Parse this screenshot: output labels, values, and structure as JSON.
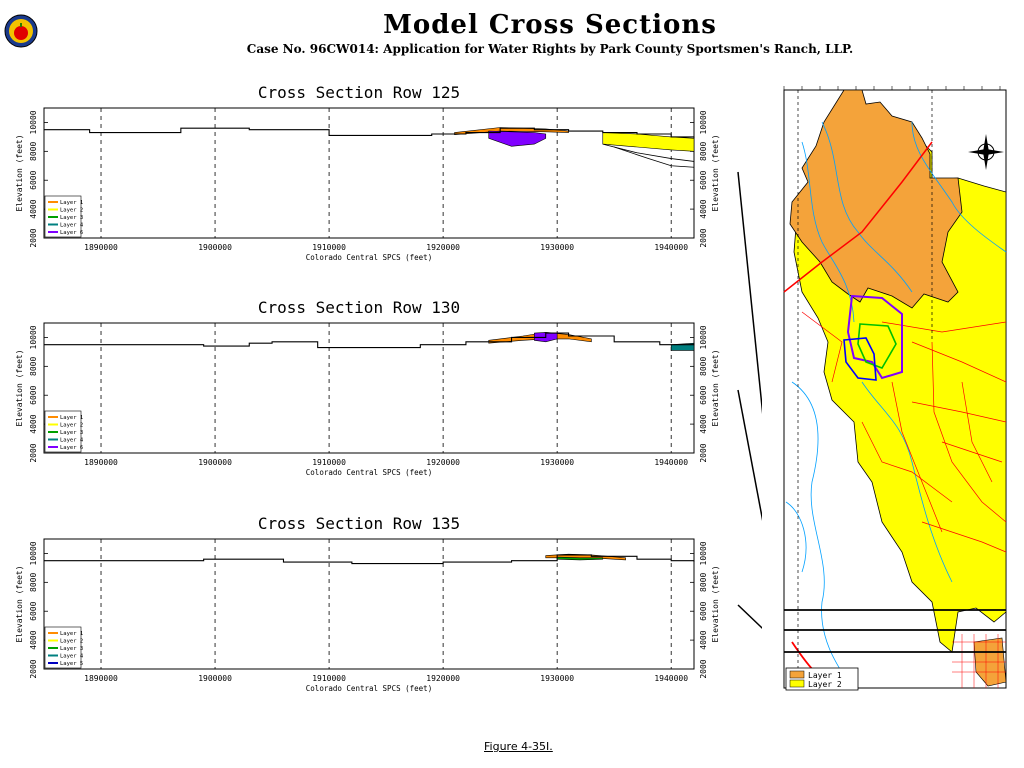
{
  "header": {
    "title": "Model Cross Sections",
    "subtitle": "Case No. 96CW014: Application for Water Rights by Park County Sportsmen's Ranch, LLP."
  },
  "figure_caption": "Figure 4-35I.",
  "colors": {
    "layer1": "#ff8c00",
    "layer2": "#ffff00",
    "layer3": "#00a000",
    "layer4": "#008080",
    "layer5": "#0000c0",
    "layer6": "#8000ff",
    "map_layer1": "#f4a33a",
    "map_layer2": "#ffff00",
    "roads": "#ff0000",
    "streams": "#00a0ff"
  },
  "chart_data": [
    {
      "type": "area",
      "title": "Cross Section Row 125",
      "xlabel": "Colorado Central SPCS (feet)",
      "ylabel": "Elevation (feet)",
      "ylabel_right": "Elevation (feet)",
      "xlim": [
        1885000,
        1942000
      ],
      "ylim": [
        2000,
        11000
      ],
      "xticks": [
        1890000,
        1900000,
        1910000,
        1920000,
        1930000,
        1940000
      ],
      "yticks": [
        2000,
        4000,
        6000,
        8000,
        10000
      ],
      "grid_x": true,
      "legend": [
        "Layer 1",
        "Layer 2",
        "Layer 3",
        "Layer 4",
        "Layer 6"
      ],
      "legend_position": "bottom-left",
      "surface": {
        "x": [
          1885000,
          1889000,
          1894000,
          1897000,
          1899000,
          1903000,
          1906000,
          1910000,
          1915000,
          1919000,
          1922000,
          1925000,
          1928000,
          1931000,
          1934000,
          1937000,
          1940000,
          1942000
        ],
        "y": [
          9500,
          9300,
          9300,
          9600,
          9600,
          9500,
          9500,
          9100,
          9100,
          9200,
          9300,
          9600,
          9500,
          9400,
          9300,
          9200,
          9000,
          8900
        ]
      },
      "bands": [
        {
          "layer": "Layer 2",
          "x": [
            1934000,
            1937000,
            1940000,
            1942000
          ],
          "top": [
            9300,
            9200,
            9000,
            8900
          ],
          "bottom": [
            8500,
            8300,
            8100,
            8000
          ]
        },
        {
          "layer": "Layer 1",
          "x": [
            1921000,
            1925000,
            1929000,
            1931000
          ],
          "top": [
            9300,
            9650,
            9550,
            9400
          ],
          "bottom": [
            9150,
            9400,
            9350,
            9300
          ]
        },
        {
          "layer": "Layer 6",
          "x": [
            1924000,
            1926000,
            1928000,
            1929000
          ],
          "top": [
            9400,
            9350,
            9300,
            9200
          ],
          "bottom": [
            8900,
            8350,
            8500,
            8900
          ]
        }
      ],
      "lower_lines": [
        {
          "x": [
            1934000,
            1937000,
            1940000,
            1942000
          ],
          "y": [
            8500,
            7900,
            7500,
            7300
          ]
        },
        {
          "x": [
            1935000,
            1938000,
            1940000,
            1942000
          ],
          "y": [
            8300,
            7500,
            7000,
            6900
          ]
        }
      ]
    },
    {
      "type": "area",
      "title": "Cross Section Row 130",
      "xlabel": "Colorado Central SPCS (feet)",
      "ylabel": "Elevation (feet)",
      "ylabel_right": "Elevation (feet)",
      "xlim": [
        1885000,
        1942000
      ],
      "ylim": [
        2000,
        11000
      ],
      "xticks": [
        1890000,
        1900000,
        1910000,
        1920000,
        1930000,
        1940000
      ],
      "yticks": [
        2000,
        4000,
        6000,
        8000,
        10000
      ],
      "grid_x": true,
      "legend": [
        "Layer 1",
        "Layer 2",
        "Layer 3",
        "Layer 4",
        "Layer 6"
      ],
      "legend_position": "bottom-left",
      "surface": {
        "x": [
          1885000,
          1890000,
          1895000,
          1899000,
          1903000,
          1905000,
          1909000,
          1914000,
          1918000,
          1922000,
          1926000,
          1929000,
          1931000,
          1935000,
          1939000,
          1942000
        ],
        "y": [
          9500,
          9500,
          9500,
          9400,
          9600,
          9700,
          9300,
          9300,
          9500,
          9700,
          10000,
          10300,
          10100,
          9700,
          9500,
          9600
        ]
      },
      "bands": [
        {
          "layer": "Layer 1",
          "x": [
            1924000,
            1927000,
            1929000,
            1931000,
            1933000
          ],
          "top": [
            9800,
            10100,
            10350,
            10200,
            9900
          ],
          "bottom": [
            9600,
            9800,
            9900,
            9900,
            9700
          ]
        },
        {
          "layer": "Layer 6",
          "x": [
            1928000,
            1929000,
            1930000
          ],
          "top": [
            10300,
            10350,
            10300
          ],
          "bottom": [
            9800,
            9700,
            9900
          ]
        },
        {
          "layer": "Layer 4",
          "x": [
            1940000,
            1942000
          ],
          "top": [
            9500,
            9600
          ],
          "bottom": [
            9100,
            9100
          ]
        }
      ],
      "lower_lines": []
    },
    {
      "type": "area",
      "title": "Cross Section Row 135",
      "xlabel": "Colorado Central SPCS (feet)",
      "ylabel": "Elevation (feet)",
      "ylabel_right": "Elevation (feet)",
      "xlim": [
        1885000,
        1942000
      ],
      "ylim": [
        2000,
        11000
      ],
      "xticks": [
        1890000,
        1900000,
        1910000,
        1920000,
        1930000,
        1940000
      ],
      "yticks": [
        2000,
        4000,
        6000,
        8000,
        10000
      ],
      "grid_x": true,
      "legend": [
        "Layer 1",
        "Layer 2",
        "Layer 3",
        "Layer 4",
        "Layer 5"
      ],
      "legend_position": "bottom-left",
      "surface": {
        "x": [
          1885000,
          1890000,
          1896000,
          1899000,
          1902000,
          1906000,
          1912000,
          1920000,
          1926000,
          1930000,
          1933000,
          1937000,
          1940000,
          1942000
        ],
        "y": [
          9500,
          9500,
          9500,
          9600,
          9600,
          9400,
          9300,
          9400,
          9500,
          9900,
          9800,
          9600,
          9500,
          9400
        ]
      },
      "bands": [
        {
          "layer": "Layer 1",
          "x": [
            1929000,
            1931000,
            1933000,
            1936000
          ],
          "top": [
            9850,
            9950,
            9900,
            9700
          ],
          "bottom": [
            9700,
            9700,
            9700,
            9550
          ]
        },
        {
          "layer": "Layer 3",
          "x": [
            1930000,
            1932000,
            1934000
          ],
          "top": [
            9750,
            9700,
            9700
          ],
          "bottom": [
            9600,
            9550,
            9600
          ]
        }
      ],
      "lower_lines": []
    }
  ],
  "map": {
    "legend": [
      {
        "label": "Layer 1",
        "color": "#f4a33a"
      },
      {
        "label": "Layer 2",
        "color": "#ffff00"
      }
    ]
  }
}
